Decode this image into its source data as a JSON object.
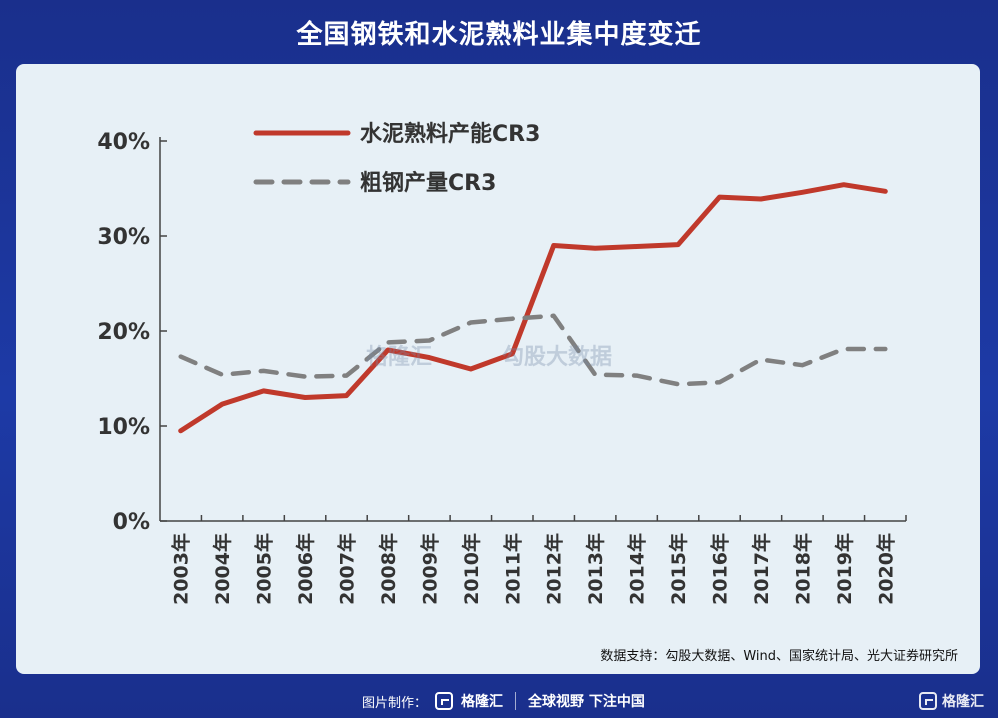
{
  "header": {
    "title": "全国钢铁和水泥熟料业集中度变迁"
  },
  "chart_data": {
    "type": "line",
    "categories": [
      "2003年",
      "2004年",
      "2005年",
      "2006年",
      "2007年",
      "2008年",
      "2009年",
      "2010年",
      "2011年",
      "2012年",
      "2013年",
      "2014年",
      "2015年",
      "2016年",
      "2017年",
      "2018年",
      "2019年",
      "2020年"
    ],
    "y_ticks": [
      "0%",
      "10%",
      "20%",
      "30%",
      "40%"
    ],
    "ylim": [
      0,
      40
    ],
    "series": [
      {
        "name": "水泥熟料产能CR3",
        "style": "solid",
        "color": "#c0392b",
        "values": [
          9.5,
          12.3,
          13.7,
          13.0,
          13.2,
          18.0,
          17.2,
          16.0,
          17.6,
          29.0,
          28.7,
          28.9,
          29.1,
          34.1,
          33.9,
          34.6,
          35.4,
          34.7
        ]
      },
      {
        "name": "粗钢产量CR3",
        "style": "dashed",
        "color": "#808080",
        "values": [
          17.3,
          15.4,
          15.8,
          15.2,
          15.3,
          18.8,
          19.0,
          20.9,
          21.3,
          21.6,
          15.4,
          15.3,
          14.4,
          14.6,
          17.0,
          16.4,
          18.1,
          18.1
        ]
      }
    ],
    "legend_position": "top-left"
  },
  "watermark": {
    "left": "格隆汇",
    "right": "勾股大数据"
  },
  "source": "数据支持：勾股大数据、Wind、国家统计局、光大证券研究所",
  "footer": {
    "credit_label": "图片制作：",
    "brand": "格隆汇",
    "slogan": "全球视野 下注中国",
    "corner_brand": "格隆汇"
  }
}
